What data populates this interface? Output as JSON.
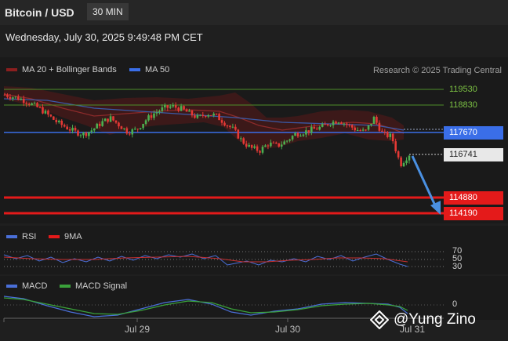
{
  "header": {
    "pair": "Bitcoin / USD",
    "timeframe": "30 MIN"
  },
  "datetime": "Wednesday, July 30, 2025 9:49:48 PM CET",
  "legend": {
    "ma20": {
      "label": "MA 20 + Bollinger Bands",
      "color": "#c0392b"
    },
    "ma50": {
      "label": "MA 50",
      "color": "#3a6ee8"
    },
    "credit": "Research © 2025 Trading Central"
  },
  "rsi_legend": {
    "rsi": "RSI",
    "ma9": "9MA"
  },
  "macd_legend": {
    "macd": "MACD",
    "signal": "MACD Signal"
  },
  "price_labels": {
    "r1": "119530",
    "r2": "118830",
    "ma50": "117670",
    "current": "116741",
    "s1": "114880",
    "s2": "114190"
  },
  "rsi_levels": {
    "l70": "70",
    "l50": "50",
    "l30": "30"
  },
  "macd_zero": "0",
  "xticks": {
    "t1": "Jul 29",
    "t2": "Jul 30",
    "t3": "Jul 31"
  },
  "watermark": "@Yung Zino",
  "chart_data": {
    "type": "candlestick",
    "yaxis_levels": [
      119530,
      118830,
      117670,
      116741,
      114880,
      114190
    ],
    "x_labels": [
      "Jul 29",
      "Jul 30",
      "Jul 31"
    ],
    "close_path": [
      119300,
      119200,
      119100,
      118900,
      118700,
      118400,
      118100,
      117900,
      117700,
      117600,
      117800,
      118100,
      118300,
      118000,
      117700,
      117800,
      118200,
      118500,
      118700,
      118800,
      118700,
      118500,
      118300,
      118500,
      118400,
      118100,
      117800,
      117300,
      117000,
      116900,
      117200,
      117100,
      117300,
      117600,
      117700,
      117800,
      117900,
      118100,
      118200,
      118000,
      117800,
      117700,
      118300,
      117600,
      117500,
      116300,
      116741
    ],
    "resistance": [
      119530,
      118830
    ],
    "support": [
      114880,
      114190
    ],
    "ma50": 117670,
    "current": 116741,
    "colors": {
      "up": "#4caf50",
      "down": "#e53935",
      "support": "#e41a1a",
      "resistance": "#7bc043",
      "ma50": "#3a6ee8",
      "arrow": "#4a90e2"
    }
  }
}
